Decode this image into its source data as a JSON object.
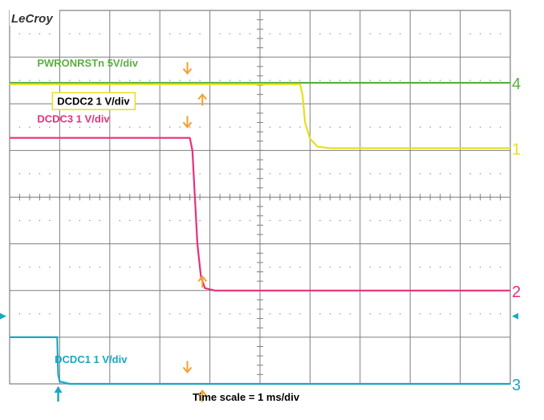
{
  "brand": "LeCroy",
  "footer": {
    "time_scale": "Time scale = 1 ms/div"
  },
  "colors": {
    "grid": "#7f7f7f",
    "background": "#ffffff",
    "marker": "#f5a030",
    "trigger": "#1aa7c4"
  },
  "chart_data": {
    "type": "line",
    "title": "",
    "xlabel": "Time scale = 1 ms/div",
    "ylabel": "",
    "grid": true,
    "x_divisions": 10,
    "y_divisions": 8,
    "series": [
      {
        "name": "PWRONRSTn  5V/div",
        "channel_label": "4",
        "color": "#5ab040",
        "boxed_label": false,
        "points": [
          [
            0,
            6.45
          ],
          [
            10,
            6.45
          ]
        ]
      },
      {
        "name": "DCDC2  1 V/div",
        "channel_label": "1",
        "color": "#e6e01c",
        "boxed_label": true,
        "points": [
          [
            0,
            6.42
          ],
          [
            5.8,
            6.42
          ],
          [
            5.85,
            6.2
          ],
          [
            5.9,
            5.6
          ],
          [
            6.0,
            5.25
          ],
          [
            6.15,
            5.08
          ],
          [
            6.4,
            5.05
          ],
          [
            10,
            5.05
          ]
        ]
      },
      {
        "name": "DCDC3  1 V/div",
        "channel_label": "2",
        "color": "#e8307a",
        "boxed_label": false,
        "points": [
          [
            0,
            5.27
          ],
          [
            3.6,
            5.27
          ],
          [
            3.65,
            5.0
          ],
          [
            3.7,
            4.0
          ],
          [
            3.75,
            3.0
          ],
          [
            3.82,
            2.3
          ],
          [
            3.9,
            2.05
          ],
          [
            4.1,
            2.0
          ],
          [
            10,
            2.0
          ]
        ]
      },
      {
        "name": "DCDC1  1 V/div",
        "channel_label": "3",
        "color": "#1aa7c4",
        "boxed_label": false,
        "points": [
          [
            0,
            1.0
          ],
          [
            0.95,
            1.0
          ],
          [
            0.97,
            0.2
          ],
          [
            1.0,
            0.05
          ],
          [
            1.2,
            0.0
          ],
          [
            10,
            0.0
          ]
        ]
      }
    ],
    "markers": [
      {
        "x": 3.55,
        "y": 6.65,
        "dir": "down"
      },
      {
        "x": 3.85,
        "y": 6.2,
        "dir": "up"
      },
      {
        "x": 3.55,
        "y": 5.5,
        "dir": "down"
      },
      {
        "x": 3.85,
        "y": 2.3,
        "dir": "up"
      },
      {
        "x": 3.55,
        "y": 0.25,
        "dir": "down"
      },
      {
        "x": 3.85,
        "y": -0.15,
        "dir": "up"
      }
    ],
    "trigger_x": 0.97
  }
}
